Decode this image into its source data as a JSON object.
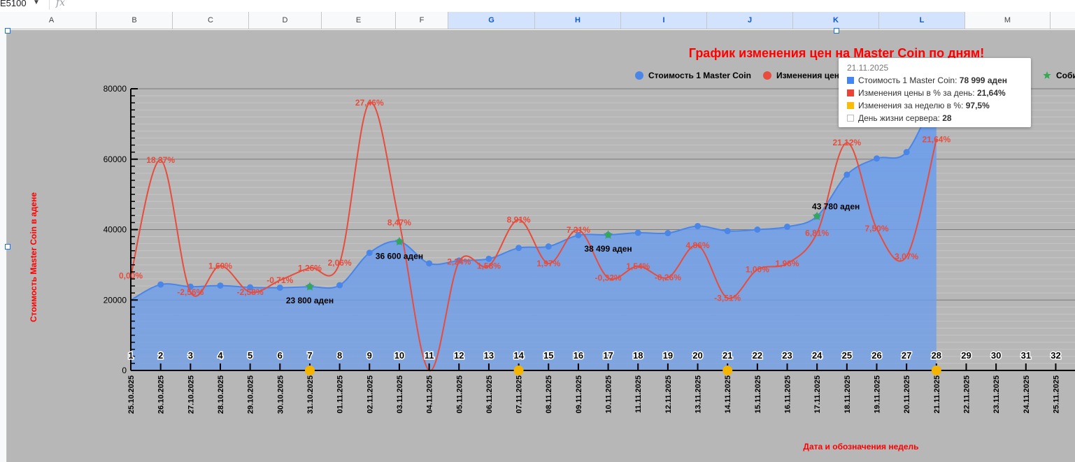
{
  "spreadsheet": {
    "cell_ref": "E5100",
    "fx": "fx",
    "columns": [
      "A",
      "B",
      "C",
      "D",
      "E",
      "F",
      "G",
      "H",
      "I",
      "J",
      "K",
      "L",
      "M"
    ],
    "selected_columns": [
      "G",
      "H",
      "I",
      "J",
      "K",
      "L"
    ]
  },
  "colors": {
    "plot_bg": "#b7b7b7",
    "price": "#4a86e8",
    "change": "#e74c3c",
    "event": "#34a853",
    "week": "#f4b400",
    "title": "#ff0000"
  },
  "chart_data": {
    "type": "area",
    "title": "График изменения цен на Master Coin по дням!",
    "xlabel": "Дата и обозначения недель",
    "ylabel": "Стоимость Master Coin в адене",
    "ylim": [
      0,
      80000
    ],
    "y_ticks": [
      "0",
      "20000",
      "40000",
      "60000",
      "80000"
    ],
    "grid": true,
    "legend_position": "top-right",
    "legend": [
      {
        "label": "Стоимость 1 Master Coin",
        "marker": "circle",
        "color": "#4a86e8"
      },
      {
        "label": "Изменения цены в % за день",
        "marker": "circle",
        "color": "#e74c3c"
      },
      {
        "label": "События",
        "marker": "star",
        "color": "#34a853"
      }
    ],
    "legend_visible_labels": [
      "Стоимость 1 Master Coin",
      "Изменения цен",
      "Соби"
    ],
    "dates": [
      "25.10.2025",
      "26.10.2025",
      "27.10.2025",
      "28.10.2025",
      "29.10.2025",
      "30.10.2025",
      "31.10.2025",
      "01.11.2025",
      "02.11.2025",
      "03.11.2025",
      "04.11.2025",
      "05.11.2025",
      "06.11.2025",
      "07.11.2025",
      "08.11.2025",
      "09.11.2025",
      "10.11.2025",
      "11.11.2025",
      "12.11.2025",
      "13.11.2025",
      "14.11.2025",
      "15.11.2025",
      "16.11.2025",
      "17.11.2025",
      "18.11.2025",
      "19.11.2025",
      "20.11.2025",
      "21.11.2025",
      "22.11.2025",
      "23.11.2025",
      "24.11.2025",
      "25.11.2025"
    ],
    "day_numbers": [
      "1",
      "2",
      "3",
      "4",
      "5",
      "6",
      "7",
      "8",
      "9",
      "10",
      "11",
      "12",
      "13",
      "14",
      "15",
      "16",
      "17",
      "18",
      "19",
      "20",
      "21",
      "22",
      "23",
      "24",
      "25",
      "26",
      "27",
      "28",
      "29",
      "30",
      "31",
      "32"
    ],
    "price_series": {
      "name": "Стоимость 1 Master Coin",
      "values": [
        20000,
        24400,
        23800,
        24100,
        23600,
        23500,
        23800,
        24200,
        33400,
        36600,
        30400,
        31200,
        31700,
        34800,
        35200,
        38400,
        38499,
        39100,
        39000,
        41000,
        39600,
        40000,
        40800,
        43780,
        55600,
        60200,
        62000,
        78999
      ]
    },
    "change_series": {
      "name": "Изменения цены в % за день",
      "values": [
        0.0,
        18.37,
        -2.56,
        1.6,
        -2.58,
        -0.71,
        1.26,
        2.06,
        27.46,
        8.47,
        -15.0,
        2.24,
        1.58,
        8.91,
        1.97,
        7.31,
        -0.32,
        1.54,
        -0.26,
        4.86,
        -3.51,
        1.0,
        1.96,
        6.81,
        21.12,
        7.5,
        3.07,
        21.64
      ],
      "labels": [
        "0,00%",
        "18,37%",
        "-2,56%",
        "1,60%",
        "-2,58%",
        "-0,71%",
        "1,26%",
        "2,06%",
        "27,46%",
        "8,47%",
        "",
        "2,24%",
        "1,58%",
        "8,91%",
        "1,97%",
        "7,31%",
        "-0,32%",
        "1,54%",
        "-0,26%",
        "4,86%",
        "-3,51%",
        "1,00%",
        "1,96%",
        "6,81%",
        "21,12%",
        "7,50%",
        "3,07%",
        "21,64%"
      ]
    },
    "events": [
      {
        "day": 7,
        "value": 23800,
        "label": "23 800 аден"
      },
      {
        "day": 10,
        "value": 36600,
        "label": "36 600 аден"
      },
      {
        "day": 17,
        "value": 38499,
        "label": "38 499 аден"
      },
      {
        "day": 24,
        "value": 43780,
        "label": "43 780 аден"
      }
    ],
    "week_markers": [
      7,
      14,
      21,
      28
    ]
  },
  "tooltip": {
    "date": "21.11.2025",
    "rows": [
      {
        "label": "Стоимость 1 Master Coin: ",
        "value": "78 999 аден",
        "swatch": "#4285f4"
      },
      {
        "label": "Изменения цены в % за день: ",
        "value": "21,64%",
        "swatch": "#ea4335"
      },
      {
        "label": "Изменения за неделю в %: ",
        "value": "97,5%",
        "swatch": "#fbbc04"
      },
      {
        "label": "День жизни сервера: ",
        "value": "28",
        "swatch": "#ffffff"
      }
    ]
  }
}
